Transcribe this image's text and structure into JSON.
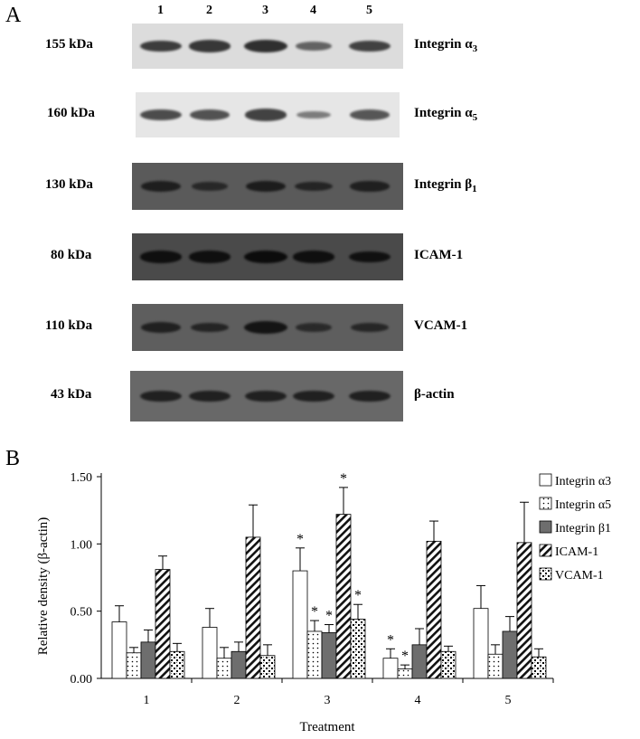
{
  "panel_a": {
    "letter": "A",
    "lanes": [
      "1",
      "2",
      "3",
      "4",
      "5"
    ],
    "rows": [
      {
        "weight": "155 kDa",
        "protein": "Integrin α",
        "sub": "3",
        "bg": "#dcdcdc",
        "band": "#2f2f2f",
        "intensity": [
          0.85,
          0.9,
          1.0,
          0.45,
          0.8
        ]
      },
      {
        "weight": "160 kDa",
        "protein": "Integrin α",
        "sub": "5",
        "bg": "#e6e6e6",
        "band": "#3a3a3a",
        "intensity": [
          0.8,
          0.75,
          0.9,
          0.3,
          0.7
        ]
      },
      {
        "weight": "130 kDa",
        "protein": "Integrin β",
        "sub": "1",
        "bg": "#5a5a5a",
        "band": "#121212",
        "intensity": [
          0.7,
          0.45,
          0.75,
          0.55,
          0.65
        ]
      },
      {
        "weight": "80 kDa",
        "protein": "ICAM-1",
        "sub": "",
        "bg": "#4a4a4a",
        "band": "#0c0c0c",
        "intensity": [
          0.9,
          0.9,
          1.0,
          0.9,
          0.85
        ]
      },
      {
        "weight": "110 kDa",
        "protein": "VCAM-1",
        "sub": "",
        "bg": "#5e5e5e",
        "band": "#141414",
        "intensity": [
          0.7,
          0.6,
          1.0,
          0.45,
          0.55
        ]
      },
      {
        "weight": "43 kDa",
        "protein": "β-actin",
        "sub": "",
        "bg": "#686868",
        "band": "#1a1a1a",
        "intensity": [
          0.85,
          0.85,
          0.85,
          0.85,
          0.85
        ]
      }
    ]
  },
  "panel_b": {
    "letter": "B"
  },
  "chart_data": {
    "type": "bar",
    "xlabel": "Treatment",
    "ylabel": "Relative density (β-actin)",
    "categories": [
      "1",
      "2",
      "3",
      "4",
      "5"
    ],
    "ylim": [
      0,
      1.5
    ],
    "yticks": [
      "0.00",
      "0.50",
      "1.00",
      "1.50"
    ],
    "series": [
      {
        "name": "Integrin α3",
        "pattern": "white",
        "values": [
          0.42,
          0.38,
          0.8,
          0.15,
          0.52
        ],
        "errors": [
          0.12,
          0.14,
          0.17,
          0.07,
          0.17
        ],
        "significant": [
          false,
          false,
          true,
          true,
          false
        ]
      },
      {
        "name": "Integrin α5",
        "pattern": "dots",
        "values": [
          0.19,
          0.15,
          0.35,
          0.07,
          0.18
        ],
        "errors": [
          0.04,
          0.08,
          0.08,
          0.03,
          0.07
        ],
        "significant": [
          false,
          false,
          true,
          true,
          false
        ]
      },
      {
        "name": "Integrin β1",
        "pattern": "gray",
        "values": [
          0.27,
          0.2,
          0.34,
          0.25,
          0.35
        ],
        "errors": [
          0.09,
          0.07,
          0.06,
          0.12,
          0.11
        ],
        "significant": [
          false,
          false,
          true,
          false,
          false
        ]
      },
      {
        "name": "ICAM-1",
        "pattern": "hatch",
        "values": [
          0.81,
          1.05,
          1.22,
          1.02,
          1.01
        ],
        "errors": [
          0.1,
          0.24,
          0.2,
          0.15,
          0.3
        ],
        "significant": [
          false,
          false,
          true,
          false,
          false
        ]
      },
      {
        "name": "VCAM-1",
        "pattern": "checker",
        "values": [
          0.2,
          0.17,
          0.44,
          0.2,
          0.16
        ],
        "errors": [
          0.06,
          0.08,
          0.11,
          0.04,
          0.06
        ],
        "significant": [
          false,
          false,
          true,
          false,
          false
        ]
      }
    ],
    "significance_marker": "*",
    "legend": "right"
  }
}
